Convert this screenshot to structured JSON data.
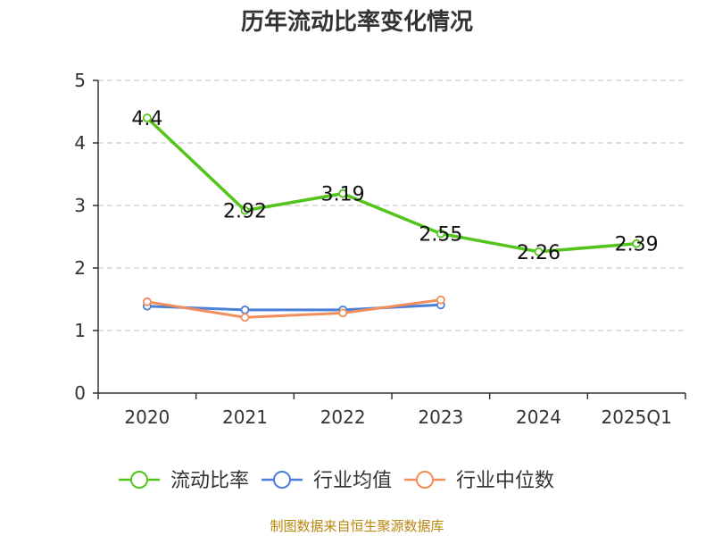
{
  "chart_data": {
    "type": "line",
    "title": "历年流动比率变化情况",
    "categories": [
      "2020",
      "2021",
      "2022",
      "2023",
      "2024",
      "2025Q1"
    ],
    "ylim": [
      0,
      5
    ],
    "yticks": [
      "0",
      "1",
      "2",
      "3",
      "4",
      "5"
    ],
    "grid": true,
    "legend_position": "bottom",
    "series": [
      {
        "name": "流动比率",
        "color": "#52c41a",
        "values": [
          4.4,
          2.92,
          3.19,
          2.55,
          2.26,
          2.39
        ],
        "labels": [
          "4.4",
          "2.92",
          "3.19",
          "2.55",
          "2.26",
          "2.39"
        ]
      },
      {
        "name": "行业均值",
        "color": "#4a7fd9",
        "values": [
          1.39,
          1.33,
          1.33,
          1.41,
          null,
          null
        ]
      },
      {
        "name": "行业中位数",
        "color": "#f28e5b",
        "values": [
          1.46,
          1.21,
          1.28,
          1.49,
          null,
          null
        ]
      }
    ]
  },
  "source": "制图数据来自恒生聚源数据库"
}
